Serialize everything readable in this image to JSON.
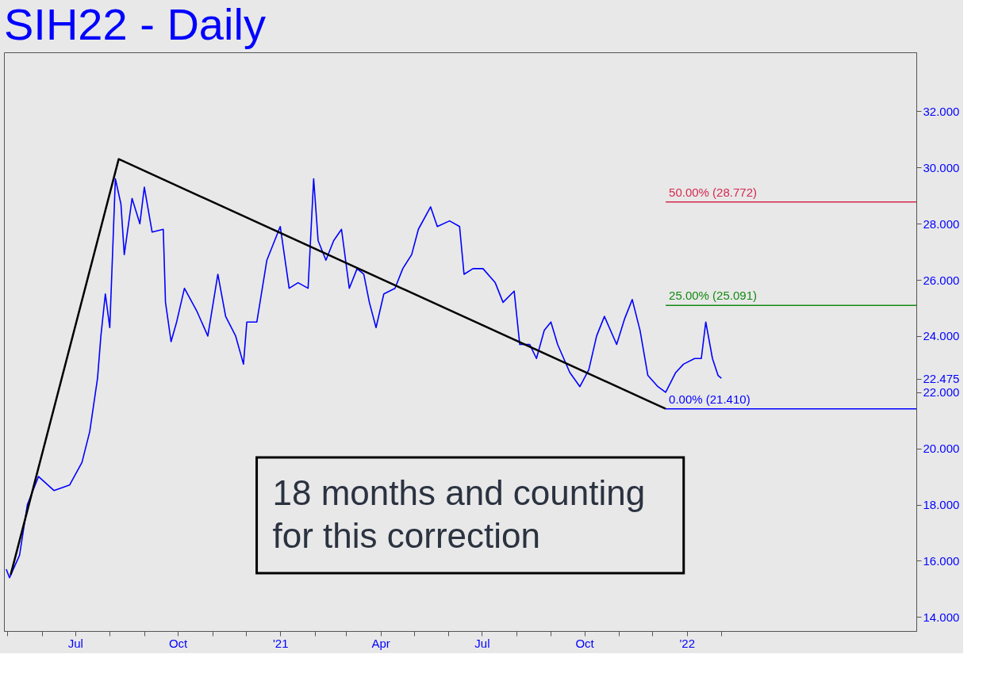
{
  "chart_data": {
    "type": "line",
    "title": "SIH22 - Daily",
    "xlim": [
      "2020-04-28",
      "2022-07-26"
    ],
    "xticks": [
      {
        "value": "2020-05-01",
        "label": null
      },
      {
        "value": "2020-06-01",
        "label": null
      },
      {
        "value": "2020-07-01",
        "label": "Jul"
      },
      {
        "value": "2020-08-01",
        "label": null
      },
      {
        "value": "2020-09-01",
        "label": null
      },
      {
        "value": "2020-10-01",
        "label": "Oct"
      },
      {
        "value": "2020-11-01",
        "label": null
      },
      {
        "value": "2020-12-01",
        "label": null
      },
      {
        "value": "2021-01-01",
        "label": "'21"
      },
      {
        "value": "2021-02-01",
        "label": null
      },
      {
        "value": "2021-03-01",
        "label": null
      },
      {
        "value": "2021-04-01",
        "label": "Apr"
      },
      {
        "value": "2021-05-01",
        "label": null
      },
      {
        "value": "2021-06-01",
        "label": null
      },
      {
        "value": "2021-07-01",
        "label": "Jul"
      },
      {
        "value": "2021-08-01",
        "label": null
      },
      {
        "value": "2021-09-01",
        "label": null
      },
      {
        "value": "2021-10-01",
        "label": "Oct"
      },
      {
        "value": "2021-11-01",
        "label": null
      },
      {
        "value": "2021-12-01",
        "label": null
      },
      {
        "value": "2022-01-01",
        "label": "'22"
      },
      {
        "value": "2022-02-01",
        "label": null
      }
    ],
    "ylim": [
      13.5,
      34.1
    ],
    "yticks": [
      {
        "value": 14,
        "label": "14.000"
      },
      {
        "value": 16,
        "label": "16.000"
      },
      {
        "value": 18,
        "label": "18.000"
      },
      {
        "value": 20,
        "label": "20.000"
      },
      {
        "value": 22,
        "label": "22.000"
      },
      {
        "value": 22.475,
        "label": "22.475"
      },
      {
        "value": 24,
        "label": "24.000"
      },
      {
        "value": 26,
        "label": "26.000"
      },
      {
        "value": 28,
        "label": "28.000"
      },
      {
        "value": 30,
        "label": "30.000"
      },
      {
        "value": 32,
        "label": "32.000"
      }
    ],
    "grid": false,
    "marker": "none",
    "line_style": "solid",
    "series": [
      {
        "color": "#0000ff",
        "x": [
          "2020-04-30",
          "2020-05-03",
          "2020-05-12",
          "2020-05-19",
          "2020-05-29",
          "2020-06-12",
          "2020-06-26",
          "2020-07-07",
          "2020-07-14",
          "2020-07-21",
          "2020-07-24",
          "2020-07-28",
          "2020-08-01",
          "2020-08-06",
          "2020-08-11",
          "2020-08-14",
          "2020-08-21",
          "2020-08-28",
          "2020-09-01",
          "2020-09-08",
          "2020-09-18",
          "2020-09-20",
          "2020-09-25",
          "2020-09-30",
          "2020-10-07",
          "2020-10-18",
          "2020-10-28",
          "2020-11-06",
          "2020-11-13",
          "2020-11-22",
          "2020-11-29",
          "2020-12-02",
          "2020-12-11",
          "2020-12-20",
          "2021-01-01",
          "2021-01-09",
          "2021-01-17",
          "2021-01-26",
          "2021-01-31",
          "2021-02-04",
          "2021-02-11",
          "2021-02-18",
          "2021-02-25",
          "2021-03-04",
          "2021-03-11",
          "2021-03-17",
          "2021-03-22",
          "2021-03-28",
          "2021-04-04",
          "2021-04-14",
          "2021-04-21",
          "2021-04-29",
          "2021-05-05",
          "2021-05-16",
          "2021-05-22",
          "2021-06-02",
          "2021-06-11",
          "2021-06-15",
          "2021-06-23",
          "2021-07-02",
          "2021-07-13",
          "2021-07-20",
          "2021-07-30",
          "2021-08-04",
          "2021-08-13",
          "2021-08-19",
          "2021-08-26",
          "2021-09-01",
          "2021-09-07",
          "2021-09-18",
          "2021-09-27",
          "2021-10-05",
          "2021-10-12",
          "2021-10-19",
          "2021-10-30",
          "2021-11-06",
          "2021-11-13",
          "2021-11-20",
          "2021-11-27",
          "2021-12-06",
          "2021-12-13",
          "2021-12-22",
          "2021-12-29",
          "2022-01-08",
          "2022-01-14",
          "2022-01-18",
          "2022-01-24",
          "2022-01-29",
          "2022-02-01"
        ],
        "values": [
          15.7,
          15.4,
          16.2,
          18.0,
          19.0,
          18.5,
          18.7,
          19.5,
          20.6,
          22.5,
          24.0,
          25.5,
          24.3,
          29.6,
          28.7,
          26.9,
          28.9,
          28.0,
          29.3,
          27.7,
          27.8,
          25.2,
          23.8,
          24.5,
          25.7,
          24.9,
          24.0,
          26.2,
          24.7,
          24.0,
          23.0,
          24.5,
          24.5,
          26.7,
          27.9,
          25.7,
          25.9,
          25.7,
          29.6,
          27.4,
          26.7,
          27.4,
          27.8,
          25.7,
          26.4,
          26.2,
          25.2,
          24.3,
          25.5,
          25.7,
          26.4,
          26.9,
          27.8,
          28.6,
          27.9,
          28.1,
          27.9,
          26.2,
          26.4,
          26.4,
          25.9,
          25.2,
          25.6,
          23.7,
          23.7,
          23.2,
          24.2,
          24.5,
          23.7,
          22.7,
          22.2,
          22.8,
          24.0,
          24.7,
          23.7,
          24.6,
          25.3,
          24.2,
          22.6,
          22.2,
          22.0,
          22.7,
          23.0,
          23.2,
          23.2,
          24.5,
          23.2,
          22.6,
          22.5
        ]
      },
      {
        "type": "line",
        "color": "#000000",
        "x": [
          "2020-05-04",
          "2020-08-09",
          "2021-12-13"
        ],
        "values": [
          15.5,
          30.3,
          21.41
        ]
      },
      {
        "type": "line",
        "name": "50.00% (28.772)",
        "color": "#d62850",
        "x": [
          "2021-12-13",
          "2022-07-26"
        ],
        "values": [
          28.772,
          28.772
        ]
      },
      {
        "type": "line",
        "name": "25.00% (25.091)",
        "color": "#138a13",
        "x": [
          "2021-12-13",
          "2022-07-26"
        ],
        "values": [
          25.091,
          25.091
        ]
      },
      {
        "type": "line",
        "name": "0.00% (21.410)",
        "color": "#0000ff",
        "x": [
          "2021-12-13",
          "2022-07-26"
        ],
        "values": [
          21.41,
          21.41
        ]
      }
    ],
    "annotations": [
      "18 months and counting\nfor this correction"
    ]
  }
}
